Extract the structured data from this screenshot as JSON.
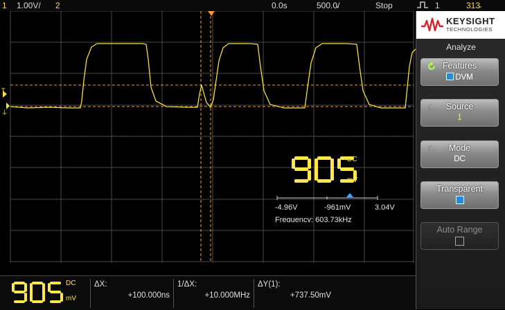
{
  "topbar": {
    "ch1_num": "1",
    "ch1_scale": "1.00V/",
    "ch2_num": "2",
    "time_pos": "0.0s",
    "time_scale": "500.0̵/",
    "status": "Stop",
    "trig_src": "1",
    "trig_level": "313̵"
  },
  "logo": {
    "brand": "KEYSIGHT",
    "sub": "TECHNOLOGIES"
  },
  "panel": {
    "title": "Analyze",
    "softkeys": [
      {
        "label": "Features",
        "value": "DVM"
      },
      {
        "label": "Source",
        "value": "1"
      },
      {
        "label": "Mode",
        "value": "DC"
      },
      {
        "label": "Transparent",
        "value": ""
      },
      {
        "label": "Auto Range",
        "value": ""
      }
    ]
  },
  "dvm": {
    "digits": "905",
    "mode": "DC",
    "unit": "mV",
    "scale_min": "-4.96V",
    "scale_mid": "-961mV",
    "scale_max": "3.04V",
    "frequency": "Frequency: 603.73kHz"
  },
  "bottom": {
    "digits": "905",
    "mode": "DC",
    "unit": "mV",
    "dx_label": "ΔX:",
    "dx_value": "+100.000ns",
    "inv_dx_label": "1/ΔX:",
    "inv_dx_value": "+10.000MHz",
    "dy_label": "ΔY(1):",
    "dy_value": "+737.50mV"
  },
  "colors": {
    "trace": "#f2e23a",
    "cursor": "#ff9a2e",
    "grid": "#4a4a4a",
    "accent": "#ffe64a"
  }
}
